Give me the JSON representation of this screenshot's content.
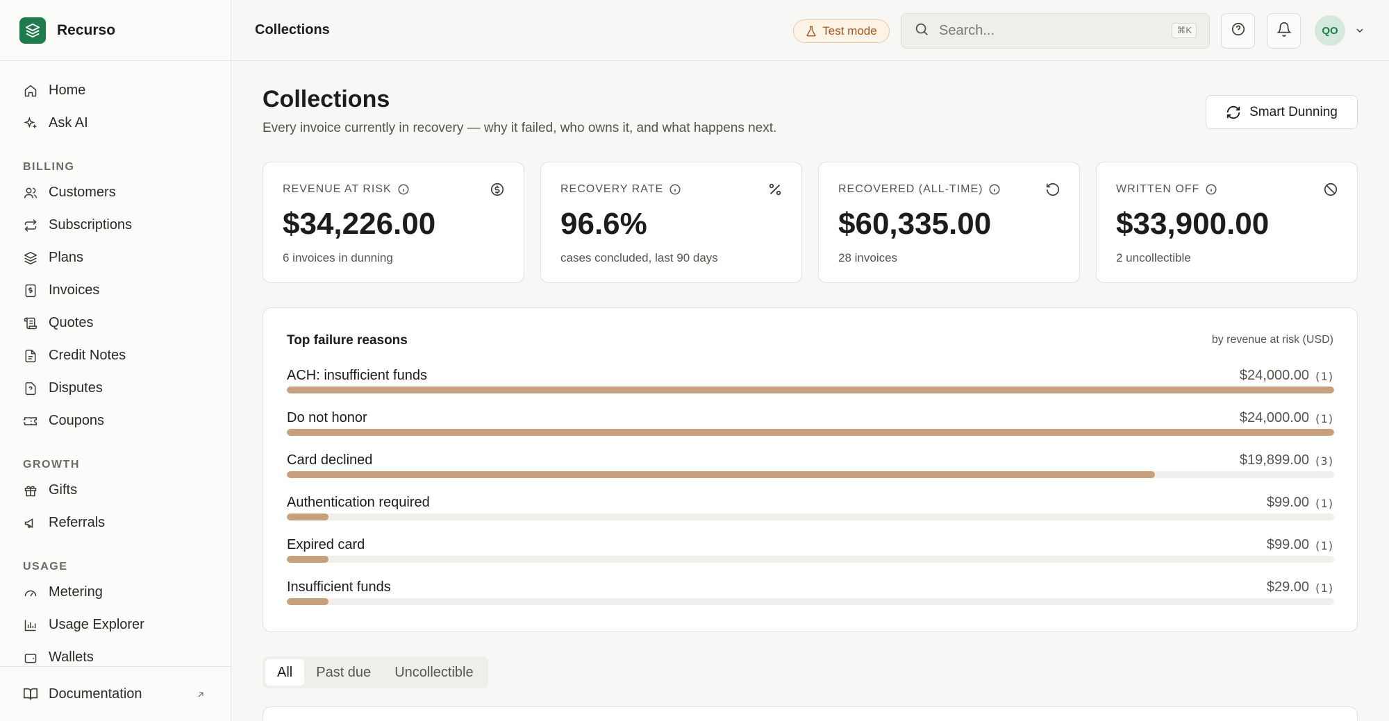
{
  "brand": {
    "name": "Recurso"
  },
  "sidebar": {
    "top_items": [
      {
        "label": "Home",
        "icon": "home-icon"
      },
      {
        "label": "Ask AI",
        "icon": "sparkle-icon"
      }
    ],
    "sections": [
      {
        "title": "BILLING",
        "items": [
          {
            "label": "Customers",
            "icon": "users-icon"
          },
          {
            "label": "Subscriptions",
            "icon": "repeat-icon"
          },
          {
            "label": "Plans",
            "icon": "layers-icon"
          },
          {
            "label": "Invoices",
            "icon": "invoice-icon"
          },
          {
            "label": "Quotes",
            "icon": "scroll-icon"
          },
          {
            "label": "Credit Notes",
            "icon": "file-icon"
          },
          {
            "label": "Disputes",
            "icon": "question-file-icon"
          },
          {
            "label": "Coupons",
            "icon": "ticket-icon"
          }
        ]
      },
      {
        "title": "GROWTH",
        "items": [
          {
            "label": "Gifts",
            "icon": "gift-icon"
          },
          {
            "label": "Referrals",
            "icon": "megaphone-icon"
          }
        ]
      },
      {
        "title": "USAGE",
        "items": [
          {
            "label": "Metering",
            "icon": "gauge-icon"
          },
          {
            "label": "Usage Explorer",
            "icon": "bar-chart-icon"
          },
          {
            "label": "Wallets",
            "icon": "wallet-icon"
          }
        ]
      }
    ],
    "footer": {
      "label": "Documentation"
    }
  },
  "header": {
    "title": "Collections",
    "test_mode": "Test mode",
    "search_placeholder": "Search...",
    "search_shortcut": "⌘K",
    "avatar_initials": "QO"
  },
  "page": {
    "title": "Collections",
    "subtitle": "Every invoice currently in recovery — why it failed, who owns it, and what happens next.",
    "smart_dunning": "Smart Dunning"
  },
  "cards": [
    {
      "label": "REVENUE AT RISK",
      "value": "$34,226.00",
      "sub": "6 invoices in dunning",
      "icon": "dollar-circle-icon"
    },
    {
      "label": "RECOVERY RATE",
      "value": "96.6%",
      "sub": "cases concluded, last 90 days",
      "icon": "percent-icon"
    },
    {
      "label": "RECOVERED (ALL-TIME)",
      "value": "$60,335.00",
      "sub": "28 invoices",
      "icon": "rotate-ccw-icon"
    },
    {
      "label": "WRITTEN OFF",
      "value": "$33,900.00",
      "sub": "2 uncollectible",
      "icon": "ban-icon"
    }
  ],
  "failure_reasons": {
    "title": "Top failure reasons",
    "note": "by revenue at risk (USD)",
    "max_value": 24000,
    "items": [
      {
        "label": "ACH: insufficient funds",
        "amount": "$24,000.00",
        "count": "(1)",
        "value": 24000
      },
      {
        "label": "Do not honor",
        "amount": "$24,000.00",
        "count": "(1)",
        "value": 24000
      },
      {
        "label": "Card declined",
        "amount": "$19,899.00",
        "count": "(3)",
        "value": 19899
      },
      {
        "label": "Authentication required",
        "amount": "$99.00",
        "count": "(1)",
        "value": 99
      },
      {
        "label": "Expired card",
        "amount": "$99.00",
        "count": "(1)",
        "value": 99
      },
      {
        "label": "Insufficient funds",
        "amount": "$29.00",
        "count": "(1)",
        "value": 29
      }
    ],
    "bar_color": "#c8a07e"
  },
  "tabs": [
    {
      "label": "All",
      "active": true
    },
    {
      "label": "Past due",
      "active": false
    },
    {
      "label": "Uncollectible",
      "active": false
    }
  ],
  "colors": {
    "brand": "#1f7a4d",
    "test_mode": "#a5531a"
  }
}
